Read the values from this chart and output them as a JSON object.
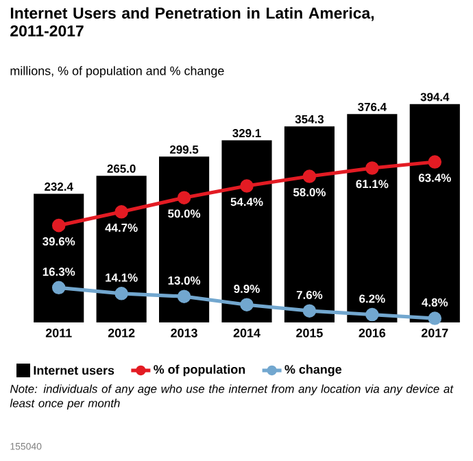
{
  "chart_data": {
    "type": "bar",
    "title": "Internet Users and Penetration in Latin America, 2011-2017",
    "subtitle": "millions, % of population and % change",
    "categories": [
      "2011",
      "2012",
      "2013",
      "2014",
      "2015",
      "2016",
      "2017"
    ],
    "series": [
      {
        "name": "Internet users",
        "color": "#000000",
        "values": [
          232.4,
          265.0,
          299.5,
          329.1,
          354.3,
          376.4,
          394.4
        ],
        "value_labels": [
          "232.4",
          "265.0",
          "299.5",
          "329.1",
          "354.3",
          "376.4",
          "394.4"
        ]
      },
      {
        "name": "% of population",
        "type": "line",
        "axis": "y2",
        "marker": "circle",
        "color": "#e31b23",
        "values": [
          39.6,
          44.7,
          50.0,
          54.4,
          58.0,
          61.1,
          63.4
        ],
        "value_labels": [
          "39.6%",
          "44.7%",
          "50.0%",
          "54.4%",
          "58.0%",
          "61.1%",
          "63.4%"
        ]
      },
      {
        "name": "% change",
        "type": "line",
        "axis": "y2",
        "marker": "circle",
        "color": "#72a7cf",
        "values": [
          16.3,
          14.1,
          13.0,
          9.9,
          7.6,
          6.2,
          4.8
        ],
        "value_labels": [
          "16.3%",
          "14.1%",
          "13.0%",
          "9.9%",
          "7.6%",
          "6.2%",
          "4.8%"
        ]
      }
    ],
    "tick_labels": "x",
    "legend": "bottom",
    "annotations": [
      "Note: individuals of any age who use the internet from any location via any device at least once per month",
      "155040"
    ]
  }
}
